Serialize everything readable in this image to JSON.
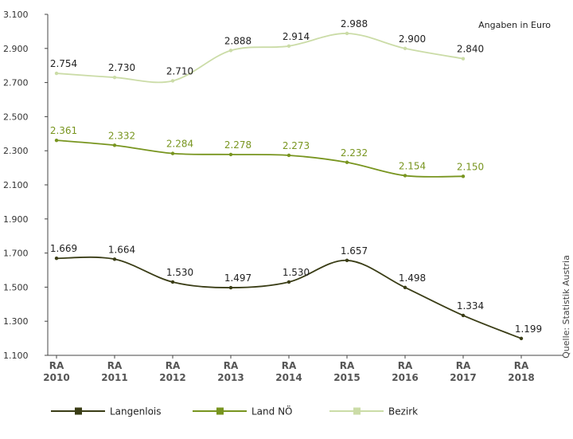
{
  "chart_data": {
    "type": "line",
    "categories": [
      "RA 2010",
      "RA 2011",
      "RA 2012",
      "RA 2013",
      "RA 2014",
      "RA 2015",
      "RA 2016",
      "RA 2017",
      "RA 2018"
    ],
    "category_lines": [
      [
        "RA",
        "2010"
      ],
      [
        "RA",
        "2011"
      ],
      [
        "RA",
        "2012"
      ],
      [
        "RA",
        "2013"
      ],
      [
        "RA",
        "2014"
      ],
      [
        "RA",
        "2015"
      ],
      [
        "RA",
        "2016"
      ],
      [
        "RA",
        "2017"
      ],
      [
        "RA",
        "2018"
      ]
    ],
    "y_ticks": [
      "1.100",
      "1.300",
      "1.500",
      "1.700",
      "1.900",
      "2.100",
      "2.300",
      "2.500",
      "2.700",
      "2.900",
      "3.100"
    ],
    "ylim": [
      1100,
      3100
    ],
    "grid": false,
    "legend_position": "bottom",
    "annotation": "Angaben in Euro",
    "source": "Quelle: Statistik Austria",
    "series": [
      {
        "name": "Langenlois",
        "color": "#3a3d16",
        "values": [
          1669,
          1664,
          1530,
          1497,
          1530,
          1657,
          1498,
          1334,
          1199
        ],
        "labels": [
          "1.669",
          "1.664",
          "1.530",
          "1.497",
          "1.530",
          "1.657",
          "1.498",
          "1.334",
          "1.199"
        ]
      },
      {
        "name": "Land NÖ",
        "color": "#78951f",
        "values": [
          2361,
          2332,
          2284,
          2278,
          2273,
          2232,
          2154,
          2150,
          null
        ],
        "labels": [
          "2.361",
          "2.332",
          "2.284",
          "2.278",
          "2.273",
          "2.232",
          "2.154",
          "2.150",
          null
        ]
      },
      {
        "name": "Bezirk",
        "color": "#cbdca7",
        "values": [
          2754,
          2730,
          2710,
          2888,
          2914,
          2988,
          2900,
          2840,
          null
        ],
        "labels": [
          "2.754",
          "2.730",
          "2.710",
          "2.888",
          "2.914",
          "2.988",
          "2.900",
          "2.840",
          null
        ]
      }
    ]
  }
}
